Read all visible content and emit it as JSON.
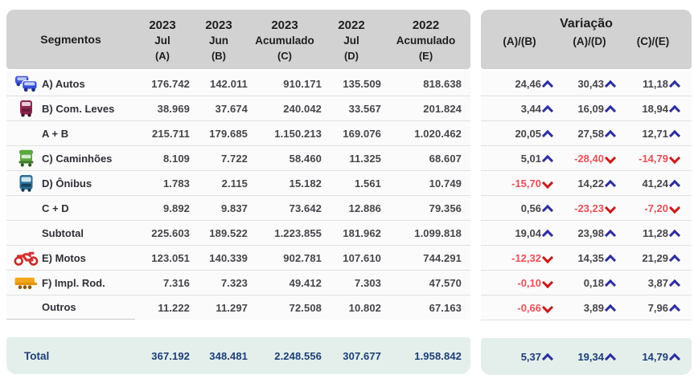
{
  "colors": {
    "header_bg": "#d2d2d2",
    "total_bg": "#e4efec",
    "total_text": "#1c3e78",
    "positive_text": "#45454b",
    "negative_text": "#e84e56",
    "up_arrow": "#2b2e9e",
    "down_arrow": "#c81a1a"
  },
  "left_table": {
    "segment_header": "Segmentos",
    "columns": [
      {
        "year": "2023",
        "period": "Jul",
        "key": "(A)"
      },
      {
        "year": "2023",
        "period": "Jun",
        "key": "(B)"
      },
      {
        "year": "2023",
        "period": "Acumulado",
        "key": "(C)"
      },
      {
        "year": "2022",
        "period": "Jul",
        "key": "(D)"
      },
      {
        "year": "2022",
        "period": "Acumulado",
        "key": "(E)"
      }
    ]
  },
  "variation_table": {
    "title": "Variação",
    "columns": [
      "(A)/(B)",
      "(A)/(D)",
      "(C)/(E)"
    ]
  },
  "rows": [
    {
      "label": "A) Autos",
      "icon": "autos-icon",
      "values": [
        "176.742",
        "142.011",
        "910.171",
        "135.509",
        "818.638"
      ],
      "variations": [
        {
          "value": "24,46",
          "dir": "up"
        },
        {
          "value": "30,43",
          "dir": "up"
        },
        {
          "value": "11,18",
          "dir": "up"
        }
      ]
    },
    {
      "label": "B) Com. Leves",
      "icon": "com-leves-icon",
      "values": [
        "38.969",
        "37.674",
        "240.042",
        "33.567",
        "201.824"
      ],
      "variations": [
        {
          "value": "3,44",
          "dir": "up"
        },
        {
          "value": "16,09",
          "dir": "up"
        },
        {
          "value": "18,94",
          "dir": "up"
        }
      ]
    },
    {
      "label": "A + B",
      "icon": null,
      "values": [
        "215.711",
        "179.685",
        "1.150.213",
        "169.076",
        "1.020.462"
      ],
      "variations": [
        {
          "value": "20,05",
          "dir": "up"
        },
        {
          "value": "27,58",
          "dir": "up"
        },
        {
          "value": "12,71",
          "dir": "up"
        }
      ]
    },
    {
      "label": "C) Caminhões",
      "icon": "caminhoes-icon",
      "values": [
        "8.109",
        "7.722",
        "58.460",
        "11.325",
        "68.607"
      ],
      "variations": [
        {
          "value": "5,01",
          "dir": "up"
        },
        {
          "value": "-28,40",
          "dir": "down"
        },
        {
          "value": "-14,79",
          "dir": "down"
        }
      ]
    },
    {
      "label": "D) Ônibus",
      "icon": "onibus-icon",
      "values": [
        "1.783",
        "2.115",
        "15.182",
        "1.561",
        "10.749"
      ],
      "variations": [
        {
          "value": "-15,70",
          "dir": "down"
        },
        {
          "value": "14,22",
          "dir": "up"
        },
        {
          "value": "41,24",
          "dir": "up"
        }
      ]
    },
    {
      "label": "C + D",
      "icon": null,
      "values": [
        "9.892",
        "9.837",
        "73.642",
        "12.886",
        "79.356"
      ],
      "variations": [
        {
          "value": "0,56",
          "dir": "up"
        },
        {
          "value": "-23,23",
          "dir": "down"
        },
        {
          "value": "-7,20",
          "dir": "down"
        }
      ]
    },
    {
      "label": "Subtotal",
      "icon": null,
      "values": [
        "225.603",
        "189.522",
        "1.223.855",
        "181.962",
        "1.099.818"
      ],
      "variations": [
        {
          "value": "19,04",
          "dir": "up"
        },
        {
          "value": "23,98",
          "dir": "up"
        },
        {
          "value": "11,28",
          "dir": "up"
        }
      ]
    },
    {
      "label": "E) Motos",
      "icon": "motos-icon",
      "values": [
        "123.051",
        "140.339",
        "902.781",
        "107.610",
        "744.291"
      ],
      "variations": [
        {
          "value": "-12,32",
          "dir": "down"
        },
        {
          "value": "14,35",
          "dir": "up"
        },
        {
          "value": "21,29",
          "dir": "up"
        }
      ]
    },
    {
      "label": "F) Impl. Rod.",
      "icon": "impl-rod-icon",
      "values": [
        "7.316",
        "7.323",
        "49.412",
        "7.303",
        "47.570"
      ],
      "variations": [
        {
          "value": "-0,10",
          "dir": "down"
        },
        {
          "value": "0,18",
          "dir": "up"
        },
        {
          "value": "3,87",
          "dir": "up"
        }
      ]
    },
    {
      "label": "Outros",
      "icon": null,
      "values": [
        "11.222",
        "11.297",
        "72.508",
        "10.802",
        "67.163"
      ],
      "variations": [
        {
          "value": "-0,66",
          "dir": "down"
        },
        {
          "value": "3,89",
          "dir": "up"
        },
        {
          "value": "7,96",
          "dir": "up"
        }
      ]
    }
  ],
  "total": {
    "label": "Total",
    "values": [
      "367.192",
      "348.481",
      "2.248.556",
      "307.677",
      "1.958.842"
    ],
    "variations": [
      {
        "value": "5,37",
        "dir": "up",
        "arrow_class": "chev up"
      },
      {
        "value": "19,34",
        "dir": "up",
        "arrow_class": "chev up"
      },
      {
        "value": "14,79",
        "dir": "up",
        "arrow_class": "chev up"
      }
    ]
  }
}
